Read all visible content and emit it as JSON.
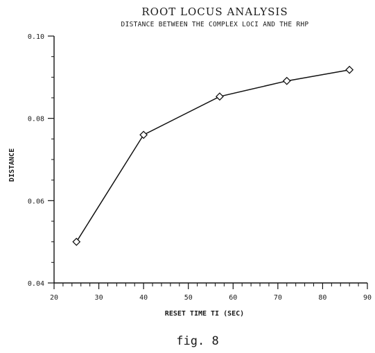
{
  "chart_data": {
    "type": "line",
    "title": "ROOT LOCUS ANALYSIS",
    "subtitle": "DISTANCE BETWEEN THE COMPLEX LOCI AND THE RHP",
    "xlabel": "RESET TIME TI (SEC)",
    "ylabel": "DISTANCE",
    "xlim": [
      20,
      90
    ],
    "ylim": [
      0.04,
      0.1
    ],
    "x_ticks": [
      20,
      30,
      40,
      50,
      60,
      70,
      80,
      90
    ],
    "x_tick_labels": [
      "20",
      "30",
      "40",
      "50",
      "60",
      "70",
      "80",
      "90"
    ],
    "y_ticks": [
      0.04,
      0.06,
      0.08,
      0.1
    ],
    "y_tick_labels": [
      "0.04",
      "0.06",
      "0.08",
      "0.10"
    ],
    "grid": false,
    "marker": "diamond",
    "series": [
      {
        "x": [
          25,
          40,
          57,
          72,
          86
        ],
        "y": [
          0.05,
          0.076,
          0.0853,
          0.0891,
          0.0918
        ]
      }
    ]
  },
  "caption": "fig. 8"
}
